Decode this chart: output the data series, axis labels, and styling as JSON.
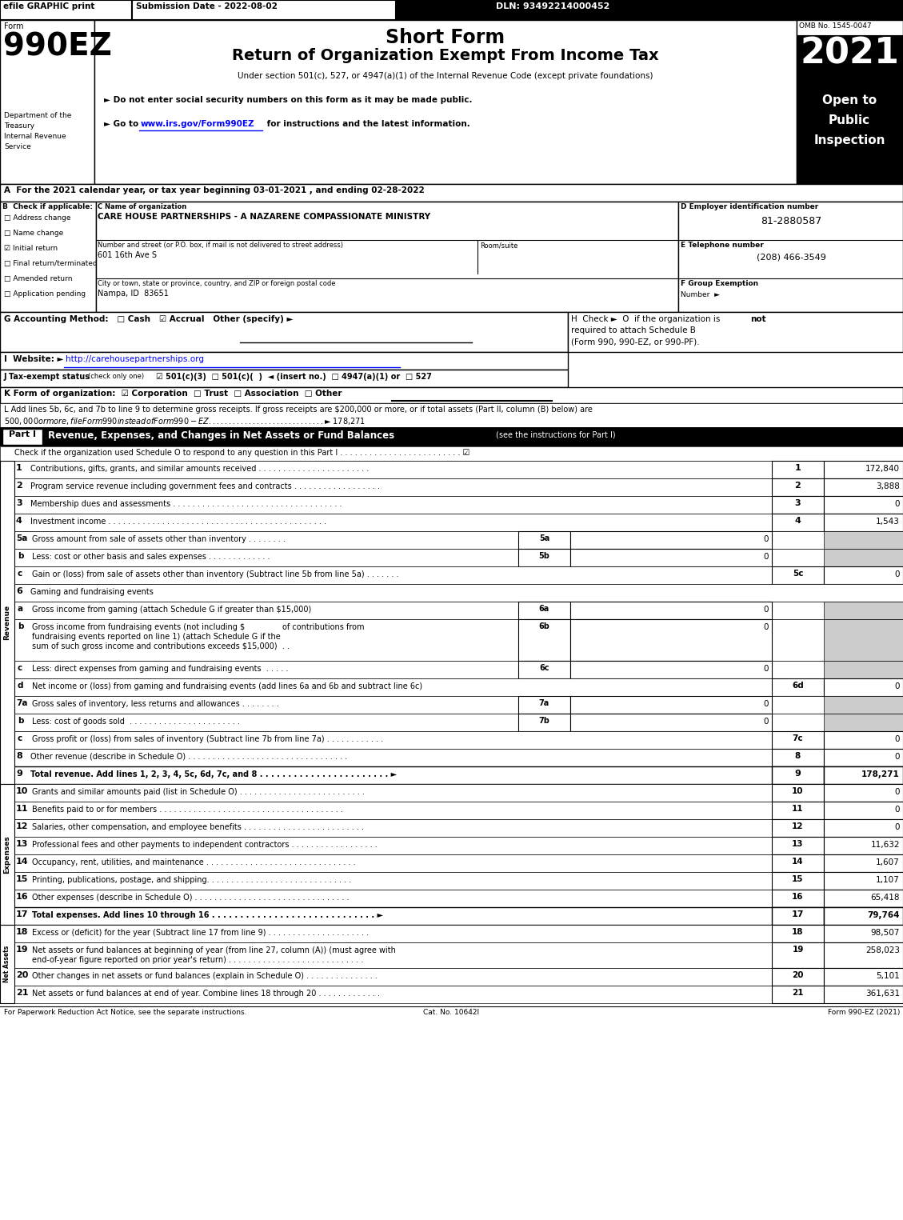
{
  "header_bar": {
    "efile": "efile GRAPHIC print",
    "submission": "Submission Date - 2022-08-02",
    "dln": "DLN: 93492214000452"
  },
  "form_title": "Short Form",
  "form_subtitle": "Return of Organization Exempt From Income Tax",
  "form_under": "Under section 501(c), 527, or 4947(a)(1) of the Internal Revenue Code (except private foundations)",
  "form_number": "990EZ",
  "year": "2021",
  "omb": "OMB No. 1545-0047",
  "open_to": "Open to\nPublic\nInspection",
  "dept_lines": [
    "Department of the",
    "Treasury",
    "Internal Revenue",
    "Service"
  ],
  "bullet1": "► Do not enter social security numbers on this form as it may be made public.",
  "bullet2_pre": "► Go to ",
  "bullet2_url": "www.irs.gov/Form990EZ",
  "bullet2_post": " for instructions and the latest information.",
  "section_A": "A  For the 2021 calendar year, or tax year beginning 03-01-2021 , and ending 02-28-2022",
  "checkboxes_B": [
    {
      "label": "Address change",
      "checked": false
    },
    {
      "label": "Name change",
      "checked": false
    },
    {
      "label": "Initial return",
      "checked": true
    },
    {
      "label": "Final return/terminated",
      "checked": false
    },
    {
      "label": "Amended return",
      "checked": false
    },
    {
      "label": "Application pending",
      "checked": false
    }
  ],
  "org_name": "CARE HOUSE PARTNERSHIPS - A NAZARENE COMPASSIONATE MINISTRY",
  "address_label": "Number and street (or P.O. box, if mail is not delivered to street address)",
  "room_label": "Room/suite",
  "address": "601 16th Ave S",
  "city_label": "City or town, state or province, country, and ZIP or foreign postal code",
  "city": "Nampa, ID  83651",
  "ein": "81-2880587",
  "phone": "(208) 466-3549",
  "website_url": "http://carehousepartnerships.org",
  "section_J": "J Tax-exempt status",
  "section_J2": "(check only one)  ☑ 501(c)(3)  □ 501(c)(  )  ◄ (insert no.)  □ 4947(a)(1) or  □ 527",
  "section_K": "K Form of organization:  ☑ Corporation  □ Trust  □ Association  □ Other",
  "revenue_lines": [
    {
      "num": "1",
      "desc": "Contributions, gifts, grants, and similar amounts received . . . . . . . . . . . . . . . . . . . . . . .",
      "line_num": "1",
      "value": "172,840"
    },
    {
      "num": "2",
      "desc": "Program service revenue including government fees and contracts . . . . . . . . . . . . . . . . . .",
      "line_num": "2",
      "value": "3,888"
    },
    {
      "num": "3",
      "desc": "Membership dues and assessments . . . . . . . . . . . . . . . . . . . . . . . . . . . . . . . . . . .",
      "line_num": "3",
      "value": "0"
    },
    {
      "num": "4",
      "desc": "Investment income . . . . . . . . . . . . . . . . . . . . . . . . . . . . . . . . . . . . . . . . . . . . .",
      "line_num": "4",
      "value": "1,543"
    }
  ],
  "line_5a_desc": "Gross amount from sale of assets other than inventory . . . . . . . .",
  "line_5b_desc": "Less: cost or other basis and sales expenses . . . . . . . . . . . . .",
  "line_5c_desc": "Gain or (loss) from sale of assets other than inventory (Subtract line 5b from line 5a) . . . . . . .",
  "line_6a_desc": "Gross income from gaming (attach Schedule G if greater than $15,000)",
  "line_6b_l1": "Gross income from fundraising events (not including $               of contributions from",
  "line_6b_l2": "fundraising events reported on line 1) (attach Schedule G if the",
  "line_6b_l3": "sum of such gross income and contributions exceeds $15,000)  . .",
  "line_6c_desc": "Less: direct expenses from gaming and fundraising events  . . . . .",
  "line_6d_desc": "Net income or (loss) from gaming and fundraising events (add lines 6a and 6b and subtract line 6c)",
  "line_7a_desc": "Gross sales of inventory, less returns and allowances . . . . . . . .",
  "line_7b_desc": "Less: cost of goods sold  . . . . . . . . . . . . . . . . . . . . . . .",
  "line_7c_desc": "Gross profit or (loss) from sales of inventory (Subtract line 7b from line 7a) . . . . . . . . . . . .",
  "line_8_desc": "Other revenue (describe in Schedule O) . . . . . . . . . . . . . . . . . . . . . . . . . . . . . . . . .",
  "line_9_desc": "Total revenue. Add lines 1, 2, 3, 4, 5c, 6d, 7c, and 8 . . . . . . . . . . . . . . . . . . . . . . . ►",
  "expense_lines": [
    {
      "num": "10",
      "desc": "Grants and similar amounts paid (list in Schedule O) . . . . . . . . . . . . . . . . . . . . . . . . . .",
      "line_num": "10",
      "value": "0"
    },
    {
      "num": "11",
      "desc": "Benefits paid to or for members . . . . . . . . . . . . . . . . . . . . . . . . . . . . . . . . . . . . . .",
      "line_num": "11",
      "value": "0"
    },
    {
      "num": "12",
      "desc": "Salaries, other compensation, and employee benefits . . . . . . . . . . . . . . . . . . . . . . . . .",
      "line_num": "12",
      "value": "0"
    },
    {
      "num": "13",
      "desc": "Professional fees and other payments to independent contractors . . . . . . . . . . . . . . . . . .",
      "line_num": "13",
      "value": "11,632"
    },
    {
      "num": "14",
      "desc": "Occupancy, rent, utilities, and maintenance . . . . . . . . . . . . . . . . . . . . . . . . . . . . . . .",
      "line_num": "14",
      "value": "1,607"
    },
    {
      "num": "15",
      "desc": "Printing, publications, postage, and shipping. . . . . . . . . . . . . . . . . . . . . . . . . . . . . .",
      "line_num": "15",
      "value": "1,107"
    },
    {
      "num": "16",
      "desc": "Other expenses (describe in Schedule O) . . . . . . . . . . . . . . . . . . . . . . . . . . . . . . . .",
      "line_num": "16",
      "value": "65,418"
    }
  ],
  "line_17_desc": "Total expenses. Add lines 10 through 16 . . . . . . . . . . . . . . . . . . . . . . . . . . . . . ►",
  "line_18_desc": "Excess or (deficit) for the year (Subtract line 17 from line 9) . . . . . . . . . . . . . . . . . . . . .",
  "line_19_l1": "Net assets or fund balances at beginning of year (from line 27, column (A)) (must agree with",
  "line_19_l2": "end-of-year figure reported on prior year's return) . . . . . . . . . . . . . . . . . . . . . . . . . . . .",
  "line_20_desc": "Other changes in net assets or fund balances (explain in Schedule O) . . . . . . . . . . . . . . .",
  "line_21_desc": "Net assets or fund balances at end of year. Combine lines 18 through 20 . . . . . . . . . . . . .",
  "footer_left": "For Paperwork Reduction Act Notice, see the separate instructions.",
  "footer_cat": "Cat. No. 10642I",
  "footer_right": "Form 990-EZ (2021)",
  "values": {
    "5a": "0",
    "5b": "0",
    "5c": "0",
    "6a": "0",
    "6b": "0",
    "6c": "0",
    "6d": "0",
    "7a": "0",
    "7b": "0",
    "7c": "0",
    "8": "0",
    "9": "178,271",
    "17": "79,764",
    "18": "98,507",
    "19": "258,023",
    "20": "5,101",
    "21": "361,631"
  }
}
